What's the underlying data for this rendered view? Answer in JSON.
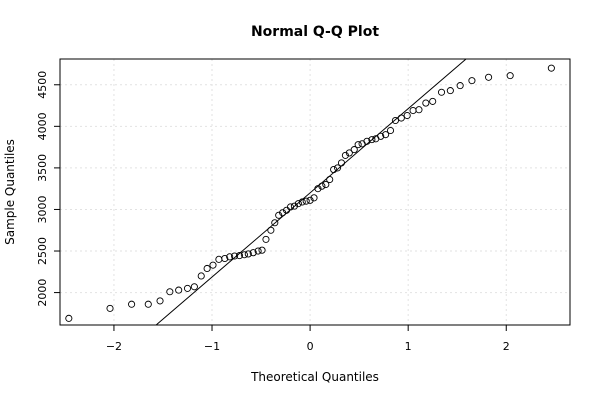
{
  "chart_data": {
    "type": "scatter",
    "title": "Normal Q-Q Plot",
    "xlabel": "Theoretical Quantiles",
    "ylabel": "Sample Quantiles",
    "xlim": [
      -2.55,
      2.65
    ],
    "ylim": [
      1610,
      4810
    ],
    "x_ticks": [
      -2,
      -1,
      0,
      1,
      2
    ],
    "x_tick_labels": [
      "−2",
      "−1",
      "0",
      "1",
      "2"
    ],
    "y_ticks": [
      2000,
      2500,
      3000,
      3500,
      4000,
      4500
    ],
    "y_tick_labels": [
      "2000",
      "2500",
      "3000",
      "3500",
      "4000",
      "4500"
    ],
    "grid": true,
    "reference_line": {
      "x1": -1.57,
      "y1": 1610,
      "x2": 1.59,
      "y2": 4810
    },
    "points": [
      [
        -2.46,
        1690
      ],
      [
        -2.04,
        1810
      ],
      [
        -1.82,
        1860
      ],
      [
        -1.65,
        1860
      ],
      [
        -1.53,
        1900
      ],
      [
        -1.43,
        2010
      ],
      [
        -1.34,
        2030
      ],
      [
        -1.25,
        2050
      ],
      [
        -1.18,
        2070
      ],
      [
        -1.11,
        2200
      ],
      [
        -1.05,
        2290
      ],
      [
        -0.99,
        2330
      ],
      [
        -0.93,
        2400
      ],
      [
        -0.87,
        2410
      ],
      [
        -0.82,
        2430
      ],
      [
        -0.77,
        2440
      ],
      [
        -0.72,
        2445
      ],
      [
        -0.67,
        2455
      ],
      [
        -0.63,
        2465
      ],
      [
        -0.58,
        2480
      ],
      [
        -0.53,
        2500
      ],
      [
        -0.49,
        2510
      ],
      [
        -0.45,
        2640
      ],
      [
        -0.4,
        2750
      ],
      [
        -0.36,
        2840
      ],
      [
        -0.32,
        2930
      ],
      [
        -0.28,
        2960
      ],
      [
        -0.24,
        2990
      ],
      [
        -0.2,
        3030
      ],
      [
        -0.16,
        3040
      ],
      [
        -0.12,
        3070
      ],
      [
        -0.08,
        3090
      ],
      [
        -0.04,
        3100
      ],
      [
        0.0,
        3110
      ],
      [
        0.04,
        3140
      ],
      [
        0.08,
        3250
      ],
      [
        0.12,
        3280
      ],
      [
        0.16,
        3300
      ],
      [
        0.2,
        3360
      ],
      [
        0.24,
        3480
      ],
      [
        0.28,
        3500
      ],
      [
        0.32,
        3560
      ],
      [
        0.36,
        3650
      ],
      [
        0.4,
        3680
      ],
      [
        0.45,
        3720
      ],
      [
        0.49,
        3780
      ],
      [
        0.53,
        3790
      ],
      [
        0.58,
        3820
      ],
      [
        0.63,
        3840
      ],
      [
        0.67,
        3850
      ],
      [
        0.72,
        3880
      ],
      [
        0.77,
        3900
      ],
      [
        0.82,
        3950
      ],
      [
        0.87,
        4070
      ],
      [
        0.93,
        4100
      ],
      [
        0.99,
        4130
      ],
      [
        1.05,
        4190
      ],
      [
        1.11,
        4200
      ],
      [
        1.18,
        4280
      ],
      [
        1.25,
        4300
      ],
      [
        1.34,
        4410
      ],
      [
        1.43,
        4430
      ],
      [
        1.53,
        4490
      ],
      [
        1.65,
        4550
      ],
      [
        1.82,
        4590
      ],
      [
        2.04,
        4610
      ],
      [
        2.46,
        4700
      ]
    ]
  }
}
